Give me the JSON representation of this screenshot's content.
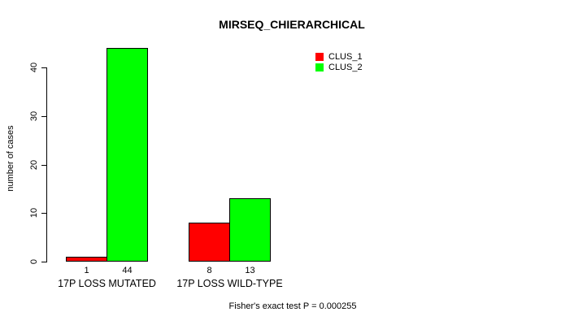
{
  "chart_data": {
    "type": "bar",
    "title": "MIRSEQ_CHIERARCHICAL",
    "ylabel": "number of cases",
    "xlabel": "",
    "categories": [
      "17P LOSS MUTATED",
      "17P LOSS WILD-TYPE"
    ],
    "series": [
      {
        "name": "CLUS_1",
        "color": "#FF0000",
        "values": [
          1,
          8
        ]
      },
      {
        "name": "CLUS_2",
        "color": "#00FF00",
        "values": [
          44,
          13
        ]
      }
    ],
    "bar_value_labels": [
      [
        "1",
        "44"
      ],
      [
        "8",
        "13"
      ]
    ],
    "ylim": [
      0,
      44
    ],
    "yticks": [
      0,
      10,
      20,
      30,
      40
    ],
    "grid": false,
    "legend_position": "top-right",
    "annotation": "Fisher's exact test P = 0.000255",
    "bar_border_color": "#000000",
    "background_color": "#FFFFFF"
  }
}
